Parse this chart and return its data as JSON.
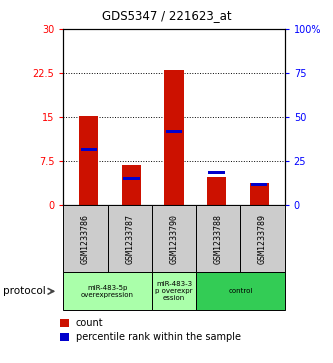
{
  "title": "GDS5347 / 221623_at",
  "samples": [
    "GSM1233786",
    "GSM1233787",
    "GSM1233790",
    "GSM1233788",
    "GSM1233789"
  ],
  "count_values": [
    15.2,
    6.8,
    23.0,
    4.8,
    3.8
  ],
  "percentile_values": [
    9.5,
    4.5,
    12.5,
    5.5,
    3.5
  ],
  "ylim_left": [
    0,
    30
  ],
  "ylim_right": [
    0,
    100
  ],
  "yticks_left": [
    0,
    7.5,
    15,
    22.5,
    30
  ],
  "ytick_labels_left": [
    "0",
    "7.5",
    "15",
    "22.5",
    "30"
  ],
  "yticks_right": [
    0,
    25,
    50,
    75,
    100
  ],
  "ytick_labels_right": [
    "0",
    "25",
    "50",
    "75",
    "100%"
  ],
  "bar_color": "#cc1100",
  "marker_color": "#0000cc",
  "bar_width": 0.45,
  "grid_yticks": [
    7.5,
    15,
    22.5
  ],
  "bg_color": "#ffffff",
  "sample_box_color": "#cccccc",
  "group_colors": [
    "#aaffaa",
    "#aaffaa",
    "#33cc55"
  ],
  "group_labels": [
    "miR-483-5p\noverexpression",
    "miR-483-3\np overexpr\nession",
    "control"
  ],
  "group_sample_indices": [
    [
      0,
      1
    ],
    [
      2
    ],
    [
      3,
      4
    ]
  ],
  "legend_count_label": "count",
  "legend_pct_label": "percentile rank within the sample",
  "protocol_label": "protocol"
}
